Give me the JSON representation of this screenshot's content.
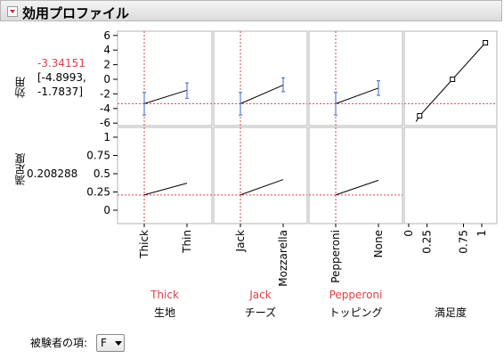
{
  "title": "効用プロファイル",
  "response_rows": [
    {
      "label": "効用",
      "current": "-3.34151",
      "ci_lower": "[-4.8993,",
      "ci_upper": "-1.7837]"
    },
    {
      "label": "満足度",
      "current": "0.208288"
    }
  ],
  "factors": [
    {
      "name": "生地",
      "current": "Thick",
      "levels": [
        "Thick",
        "Thin"
      ]
    },
    {
      "name": "チーズ",
      "current": "Jack",
      "levels": [
        "Jack",
        "Mozzarella"
      ]
    },
    {
      "name": "トッピング",
      "current": "Pepperoni",
      "levels": [
        "Pepperoni",
        "None"
      ]
    },
    {
      "name": "満足度",
      "ticks": [
        "0",
        "0.25",
        "0.75",
        "1"
      ]
    }
  ],
  "utility_axis_ticks": [
    "6",
    "4",
    "2",
    "0",
    "-2",
    "-4",
    "-6"
  ],
  "satisfaction_axis_ticks": [
    "1",
    "0.75",
    "0.5",
    "0.25",
    "0"
  ],
  "subject_term": {
    "label": "被験者の項:",
    "value": "F"
  },
  "colors": {
    "accent": "#e0404a",
    "ci": "#3a66c8"
  },
  "chart_data": {
    "type": "line",
    "ylabel_top": "効用",
    "ylabel_bottom": "満足度",
    "utility": [
      {
        "factor": "生地",
        "x": [
          "Thick",
          "Thin"
        ],
        "y": [
          -3.34,
          -1.5
        ],
        "ci": [
          [
            -4.9,
            -1.8
          ],
          [
            -2.6,
            -0.5
          ]
        ]
      },
      {
        "factor": "チーズ",
        "x": [
          "Jack",
          "Mozzarella"
        ],
        "y": [
          -3.34,
          -0.8
        ],
        "ci": [
          [
            -4.9,
            -1.8
          ],
          [
            -1.7,
            0.2
          ]
        ]
      },
      {
        "factor": "トッピング",
        "x": [
          "Pepperoni",
          "None"
        ],
        "y": [
          -3.34,
          -1.2
        ],
        "ci": [
          [
            -4.9,
            -1.8
          ],
          [
            -2.2,
            -0.2
          ]
        ]
      },
      {
        "factor": "満足度",
        "x": [
          0.1,
          0.15,
          0.6,
          1.05
        ],
        "y": [
          -5.8,
          -5.0,
          0.0,
          5.0
        ]
      }
    ],
    "satisfaction": [
      {
        "factor": "生地",
        "y": [
          0.21,
          0.37
        ]
      },
      {
        "factor": "チーズ",
        "y": [
          0.21,
          0.42
        ]
      },
      {
        "factor": "トッピング",
        "y": [
          0.21,
          0.41
        ]
      }
    ]
  }
}
